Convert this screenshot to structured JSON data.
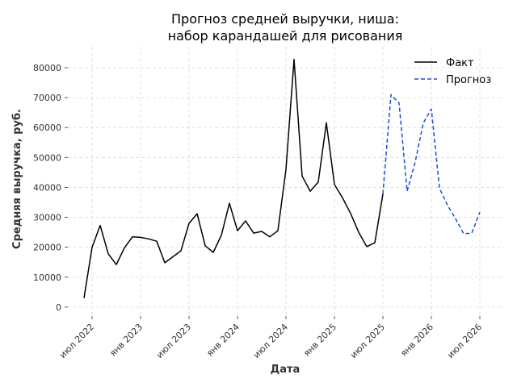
{
  "chart_data": {
    "type": "line",
    "title_lines": [
      "Прогноз средней выручки, ниша:",
      "набор карандашей для рисования"
    ],
    "xlabel": "Дата",
    "ylabel": "Средняя выручка, руб.",
    "x_ticks": [
      "2022-07",
      "2023-01",
      "2023-07",
      "2024-01",
      "2024-07",
      "2025-01",
      "2025-07",
      "2026-01",
      "2026-07"
    ],
    "x_tick_labels": [
      "июл 2022",
      "янв 2023",
      "июл 2023",
      "янв 2024",
      "июл 2024",
      "янв 2025",
      "июл 2025",
      "янв 2026",
      "июл 2026"
    ],
    "y_ticks": [
      0,
      10000,
      20000,
      30000,
      40000,
      50000,
      60000,
      70000,
      80000
    ],
    "y_tick_labels": [
      "0",
      "10000",
      "20000",
      "30000",
      "40000",
      "50000",
      "60000",
      "70000",
      "80000"
    ],
    "ylim": [
      -3000,
      87000
    ],
    "xlim": [
      "2022-04",
      "2026-10"
    ],
    "grid": true,
    "legend_position": "top-right",
    "series": [
      {
        "name": "Факт",
        "color": "#000000",
        "style": "solid",
        "points": [
          [
            "2022-06",
            3000
          ],
          [
            "2022-07",
            20000
          ],
          [
            "2022-08",
            27300
          ],
          [
            "2022-09",
            17800
          ],
          [
            "2022-10",
            14200
          ],
          [
            "2022-11",
            19800
          ],
          [
            "2022-12",
            23500
          ],
          [
            "2023-01",
            23300
          ],
          [
            "2023-02",
            22800
          ],
          [
            "2023-03",
            22000
          ],
          [
            "2023-04",
            14800
          ],
          [
            "2023-05",
            16800
          ],
          [
            "2023-06",
            18800
          ],
          [
            "2023-07",
            28000
          ],
          [
            "2023-08",
            31200
          ],
          [
            "2023-09",
            20500
          ],
          [
            "2023-10",
            18300
          ],
          [
            "2023-11",
            24000
          ],
          [
            "2023-12",
            34700
          ],
          [
            "2024-01",
            25500
          ],
          [
            "2024-02",
            28800
          ],
          [
            "2024-03",
            24700
          ],
          [
            "2024-04",
            25300
          ],
          [
            "2024-05",
            23500
          ],
          [
            "2024-06",
            25500
          ],
          [
            "2024-07",
            46000
          ],
          [
            "2024-08",
            82800
          ],
          [
            "2024-09",
            43800
          ],
          [
            "2024-10",
            38700
          ],
          [
            "2024-11",
            41800
          ],
          [
            "2024-12",
            61600
          ],
          [
            "2025-01",
            41000
          ],
          [
            "2025-02",
            36500
          ],
          [
            "2025-03",
            31300
          ],
          [
            "2025-04",
            25000
          ],
          [
            "2025-05",
            20200
          ],
          [
            "2025-06",
            21500
          ],
          [
            "2025-07",
            37800
          ]
        ]
      },
      {
        "name": "Прогноз",
        "color": "#1a4fd6",
        "style": "dashed",
        "points": [
          [
            "2025-07",
            37800
          ],
          [
            "2025-08",
            71000
          ],
          [
            "2025-09",
            68200
          ],
          [
            "2025-10",
            38700
          ],
          [
            "2025-11",
            48500
          ],
          [
            "2025-12",
            61500
          ],
          [
            "2026-01",
            66200
          ],
          [
            "2026-02",
            39800
          ],
          [
            "2026-03",
            34000
          ],
          [
            "2026-04",
            29500
          ],
          [
            "2026-05",
            24500
          ],
          [
            "2026-06",
            24700
          ],
          [
            "2026-07",
            31700
          ]
        ]
      }
    ]
  }
}
